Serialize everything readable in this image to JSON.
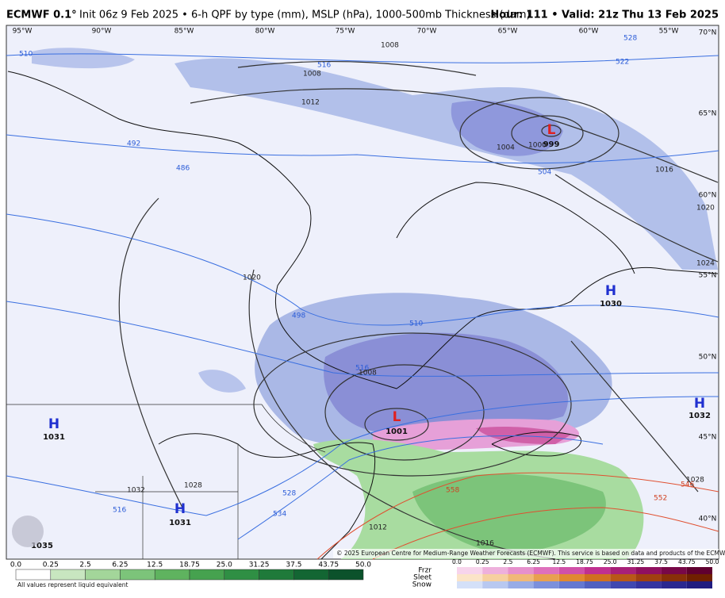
{
  "header": {
    "model": "ECMWF 0.1°",
    "title": "Init 06z 9 Feb 2025 • 6-h QPF by type (mm), MSLP (hPa), 1000-500mb Thickness (dam)",
    "valid": "Hour: 111 • Valid: 21z Thu 13 Feb 2025"
  },
  "map": {
    "longitudes": [
      "95°W",
      "90°W",
      "85°W",
      "80°W",
      "75°W",
      "70°W",
      "65°W",
      "60°W",
      "55°W",
      "70°N"
    ],
    "latitudes": [
      "65°N",
      "60°N",
      "55°N",
      "50°N",
      "45°N",
      "40°N"
    ],
    "pressure_centers": [
      {
        "type": "L",
        "value": "999"
      },
      {
        "type": "H",
        "value": "1030"
      },
      {
        "type": "L",
        "value": "1001"
      },
      {
        "type": "H",
        "value": "1031"
      },
      {
        "type": "H",
        "value": "1031"
      },
      {
        "type": "H",
        "value": "1032"
      }
    ],
    "extra_value": "1035",
    "isobar_labels": [
      "1008",
      "1008",
      "1012",
      "1004",
      "1000",
      "1016",
      "1020",
      "1024",
      "1020",
      "1008",
      "1028",
      "1012",
      "1016",
      "1028",
      "1032"
    ],
    "thickness_labels": [
      "510",
      "516",
      "522",
      "528",
      "492",
      "486",
      "504",
      "498",
      "510",
      "516",
      "528",
      "534",
      "516",
      "546",
      "552",
      "558"
    ],
    "copyright": "© 2025 European Centre for Medium-Range Weather Forecasts (ECMWF). This service is based on data and products of the ECMWF."
  },
  "legend": {
    "rain_ticks": [
      "0.0",
      "0.25",
      "2.5",
      "6.25",
      "12.5",
      "18.75",
      "25.0",
      "31.25",
      "37.5",
      "43.75",
      "50.0"
    ],
    "note": "All values represent liquid equivalent",
    "types": [
      "Frzr",
      "Sleet",
      "Snow"
    ],
    "mixed_ticks": [
      "0.0",
      "0.25",
      "2.5",
      "6.25",
      "12.5",
      "18.75",
      "25.0",
      "31.25",
      "37.5",
      "43.75",
      "50.0"
    ]
  }
}
